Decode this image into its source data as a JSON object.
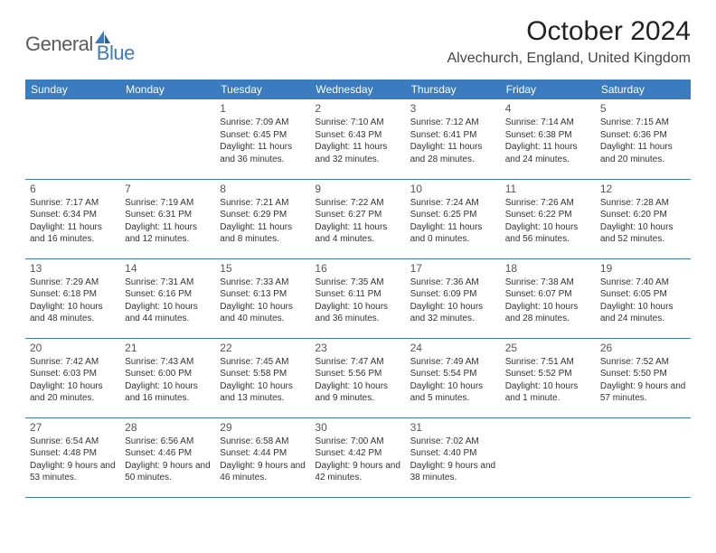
{
  "logo": {
    "general": "General",
    "blue": "Blue"
  },
  "title": "October 2024",
  "location": "Alvechurch, England, United Kingdom",
  "colors": {
    "header_bg": "#3b7bbf",
    "header_text": "#ffffff",
    "row_border": "#3b7bbf",
    "logo_gray": "#5a5a5a",
    "logo_blue": "#3b7bbf",
    "body_text": "#333333",
    "daynum_text": "#555555",
    "page_bg": "#ffffff"
  },
  "day_headers": [
    "Sunday",
    "Monday",
    "Tuesday",
    "Wednesday",
    "Thursday",
    "Friday",
    "Saturday"
  ],
  "weeks": [
    [
      null,
      null,
      {
        "n": "1",
        "sr": "7:09 AM",
        "ss": "6:45 PM",
        "dl": "11 hours and 36 minutes."
      },
      {
        "n": "2",
        "sr": "7:10 AM",
        "ss": "6:43 PM",
        "dl": "11 hours and 32 minutes."
      },
      {
        "n": "3",
        "sr": "7:12 AM",
        "ss": "6:41 PM",
        "dl": "11 hours and 28 minutes."
      },
      {
        "n": "4",
        "sr": "7:14 AM",
        "ss": "6:38 PM",
        "dl": "11 hours and 24 minutes."
      },
      {
        "n": "5",
        "sr": "7:15 AM",
        "ss": "6:36 PM",
        "dl": "11 hours and 20 minutes."
      }
    ],
    [
      {
        "n": "6",
        "sr": "7:17 AM",
        "ss": "6:34 PM",
        "dl": "11 hours and 16 minutes."
      },
      {
        "n": "7",
        "sr": "7:19 AM",
        "ss": "6:31 PM",
        "dl": "11 hours and 12 minutes."
      },
      {
        "n": "8",
        "sr": "7:21 AM",
        "ss": "6:29 PM",
        "dl": "11 hours and 8 minutes."
      },
      {
        "n": "9",
        "sr": "7:22 AM",
        "ss": "6:27 PM",
        "dl": "11 hours and 4 minutes."
      },
      {
        "n": "10",
        "sr": "7:24 AM",
        "ss": "6:25 PM",
        "dl": "11 hours and 0 minutes."
      },
      {
        "n": "11",
        "sr": "7:26 AM",
        "ss": "6:22 PM",
        "dl": "10 hours and 56 minutes."
      },
      {
        "n": "12",
        "sr": "7:28 AM",
        "ss": "6:20 PM",
        "dl": "10 hours and 52 minutes."
      }
    ],
    [
      {
        "n": "13",
        "sr": "7:29 AM",
        "ss": "6:18 PM",
        "dl": "10 hours and 48 minutes."
      },
      {
        "n": "14",
        "sr": "7:31 AM",
        "ss": "6:16 PM",
        "dl": "10 hours and 44 minutes."
      },
      {
        "n": "15",
        "sr": "7:33 AM",
        "ss": "6:13 PM",
        "dl": "10 hours and 40 minutes."
      },
      {
        "n": "16",
        "sr": "7:35 AM",
        "ss": "6:11 PM",
        "dl": "10 hours and 36 minutes."
      },
      {
        "n": "17",
        "sr": "7:36 AM",
        "ss": "6:09 PM",
        "dl": "10 hours and 32 minutes."
      },
      {
        "n": "18",
        "sr": "7:38 AM",
        "ss": "6:07 PM",
        "dl": "10 hours and 28 minutes."
      },
      {
        "n": "19",
        "sr": "7:40 AM",
        "ss": "6:05 PM",
        "dl": "10 hours and 24 minutes."
      }
    ],
    [
      {
        "n": "20",
        "sr": "7:42 AM",
        "ss": "6:03 PM",
        "dl": "10 hours and 20 minutes."
      },
      {
        "n": "21",
        "sr": "7:43 AM",
        "ss": "6:00 PM",
        "dl": "10 hours and 16 minutes."
      },
      {
        "n": "22",
        "sr": "7:45 AM",
        "ss": "5:58 PM",
        "dl": "10 hours and 13 minutes."
      },
      {
        "n": "23",
        "sr": "7:47 AM",
        "ss": "5:56 PM",
        "dl": "10 hours and 9 minutes."
      },
      {
        "n": "24",
        "sr": "7:49 AM",
        "ss": "5:54 PM",
        "dl": "10 hours and 5 minutes."
      },
      {
        "n": "25",
        "sr": "7:51 AM",
        "ss": "5:52 PM",
        "dl": "10 hours and 1 minute."
      },
      {
        "n": "26",
        "sr": "7:52 AM",
        "ss": "5:50 PM",
        "dl": "9 hours and 57 minutes."
      }
    ],
    [
      {
        "n": "27",
        "sr": "6:54 AM",
        "ss": "4:48 PM",
        "dl": "9 hours and 53 minutes."
      },
      {
        "n": "28",
        "sr": "6:56 AM",
        "ss": "4:46 PM",
        "dl": "9 hours and 50 minutes."
      },
      {
        "n": "29",
        "sr": "6:58 AM",
        "ss": "4:44 PM",
        "dl": "9 hours and 46 minutes."
      },
      {
        "n": "30",
        "sr": "7:00 AM",
        "ss": "4:42 PM",
        "dl": "9 hours and 42 minutes."
      },
      {
        "n": "31",
        "sr": "7:02 AM",
        "ss": "4:40 PM",
        "dl": "9 hours and 38 minutes."
      },
      null,
      null
    ]
  ],
  "labels": {
    "sunrise": "Sunrise:",
    "sunset": "Sunset:",
    "daylight": "Daylight:"
  }
}
